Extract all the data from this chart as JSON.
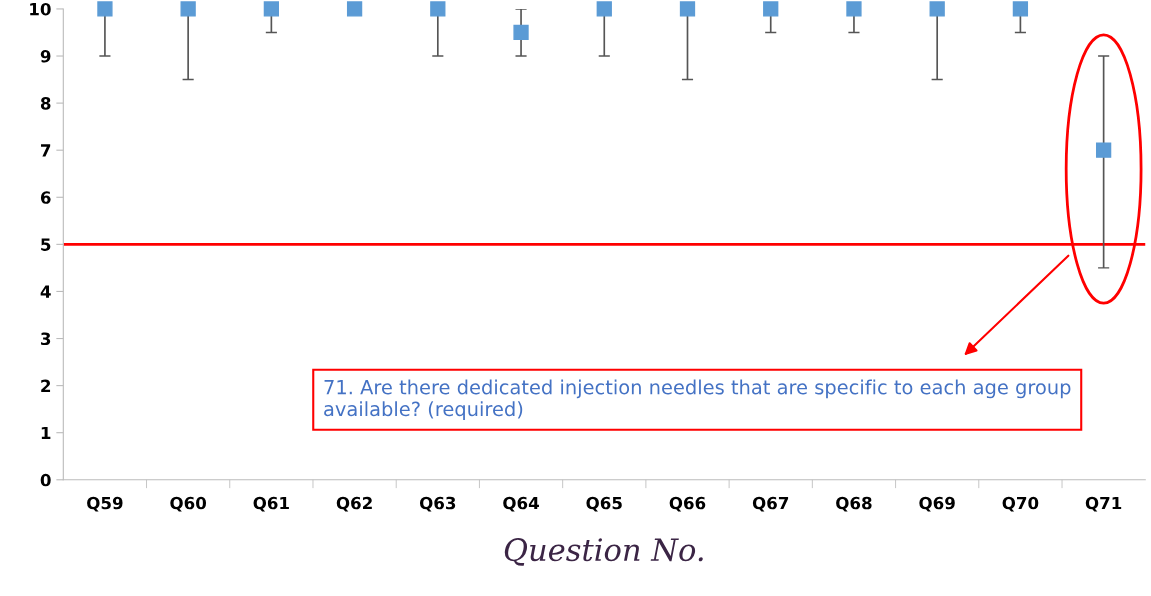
{
  "chart_data": {
    "type": "scatter",
    "categories": [
      "Q59",
      "Q60",
      "Q61",
      "Q62",
      "Q63",
      "Q64",
      "Q65",
      "Q66",
      "Q67",
      "Q68",
      "Q69",
      "Q70",
      "Q71"
    ],
    "series": [
      {
        "color": "#5b9bd5",
        "values": [
          10,
          10,
          10,
          10,
          10,
          9.5,
          10,
          10,
          10,
          10,
          10,
          10,
          7
        ],
        "errors": [
          [
            9,
            10
          ],
          [
            8.5,
            10
          ],
          [
            9.5,
            10
          ],
          null,
          [
            9,
            10
          ],
          [
            9,
            10
          ],
          [
            9,
            10
          ],
          [
            8.5,
            10
          ],
          [
            9.5,
            10
          ],
          [
            9.5,
            10
          ],
          [
            8.5,
            10
          ],
          [
            9.5,
            10
          ],
          [
            4.5,
            9
          ]
        ]
      }
    ],
    "marker": "square",
    "ylim": [
      0,
      10
    ],
    "yticks": [
      0,
      1,
      2,
      3,
      4,
      5,
      6,
      7,
      8,
      9,
      10
    ],
    "xlabel": "Question No.",
    "ref_lines": [
      {
        "axis": "y",
        "value": 5,
        "color": "#ff0000",
        "line_style": "solid"
      }
    ],
    "annotations": [
      "71. Are there dedicated injection needles that are specific to each age group available? (required)"
    ],
    "grid": false,
    "legend": false
  }
}
